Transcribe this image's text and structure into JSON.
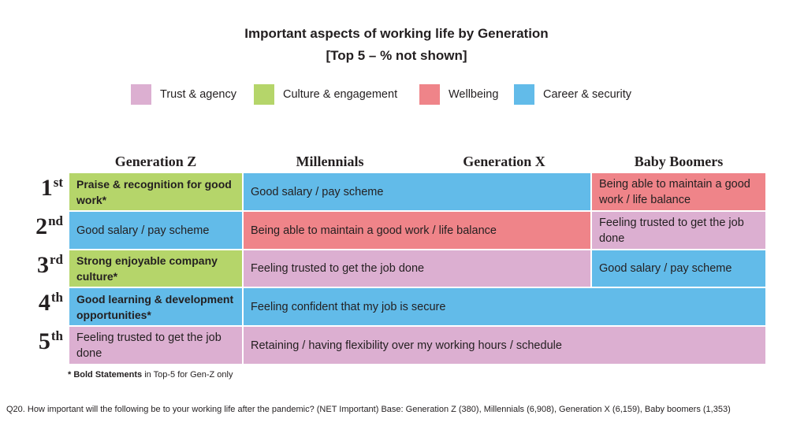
{
  "chart_data": {
    "type": "table",
    "title": "Important aspects of working life by Generation",
    "subtitle": "[Top 5 – % not shown]",
    "legend": [
      {
        "key": "trust",
        "label": "Trust & agency",
        "color": "#dcafd1"
      },
      {
        "key": "culture",
        "label": "Culture & engagement",
        "color": "#b5d56a"
      },
      {
        "key": "well",
        "label": "Wellbeing",
        "color": "#ef8489"
      },
      {
        "key": "career",
        "label": "Career & security",
        "color": "#62bbe9"
      }
    ],
    "columns": [
      "Generation Z",
      "Millennials",
      "Generation X",
      "Baby Boomers"
    ],
    "ranks": [
      {
        "num": "1",
        "suffix": "st"
      },
      {
        "num": "2",
        "suffix": "nd"
      },
      {
        "num": "3",
        "suffix": "rd"
      },
      {
        "num": "4",
        "suffix": "th"
      },
      {
        "num": "5",
        "suffix": "th"
      }
    ],
    "rows": [
      {
        "cells": [
          {
            "text": "Praise & recognition for good work*",
            "category": "culture",
            "bold": true,
            "columns": [
              "Generation Z"
            ]
          },
          {
            "text": "Good salary / pay scheme",
            "category": "career",
            "bold": false,
            "columns": [
              "Millennials",
              "Generation X"
            ]
          },
          {
            "text": "Being able to maintain a good work / life balance",
            "category": "well",
            "bold": false,
            "columns": [
              "Baby Boomers"
            ]
          }
        ]
      },
      {
        "cells": [
          {
            "text": "Good salary / pay scheme",
            "category": "career",
            "bold": false,
            "columns": [
              "Generation Z"
            ]
          },
          {
            "text": "Being able to maintain a good work / life balance",
            "category": "well",
            "bold": false,
            "columns": [
              "Millennials",
              "Generation X"
            ]
          },
          {
            "text": "Feeling trusted to get the job done",
            "category": "trust",
            "bold": false,
            "columns": [
              "Baby Boomers"
            ]
          }
        ]
      },
      {
        "cells": [
          {
            "text": "Strong enjoyable company culture*",
            "category": "culture",
            "bold": true,
            "columns": [
              "Generation Z"
            ]
          },
          {
            "text": "Feeling trusted to get the job done",
            "category": "trust",
            "bold": false,
            "columns": [
              "Millennials",
              "Generation X"
            ]
          },
          {
            "text": "Good salary / pay scheme",
            "category": "career",
            "bold": false,
            "columns": [
              "Baby Boomers"
            ]
          }
        ]
      },
      {
        "cells": [
          {
            "text": "Good learning & development opportunities*",
            "category": "career",
            "bold": true,
            "columns": [
              "Generation Z"
            ]
          },
          {
            "text": "Feeling confident that my job is secure",
            "category": "career",
            "bold": false,
            "columns": [
              "Millennials",
              "Generation X",
              "Baby Boomers"
            ]
          }
        ]
      },
      {
        "cells": [
          {
            "text": "Feeling trusted to get the job done",
            "category": "trust",
            "bold": false,
            "columns": [
              "Generation Z"
            ]
          },
          {
            "text": "Retaining / having flexibility over my working hours / schedule",
            "category": "trust",
            "bold": false,
            "columns": [
              "Millennials",
              "Generation X",
              "Baby Boomers"
            ]
          }
        ]
      }
    ]
  },
  "note": {
    "bold": "* Bold Statements",
    "rest": " in Top-5 for Gen-Z only"
  },
  "footer": "Q20. How important will the following be to your working life after the pandemic? (NET Important) Base: Generation Z (380), Millennials (6,908), Generation X (6,159), Baby boomers (1,353)"
}
